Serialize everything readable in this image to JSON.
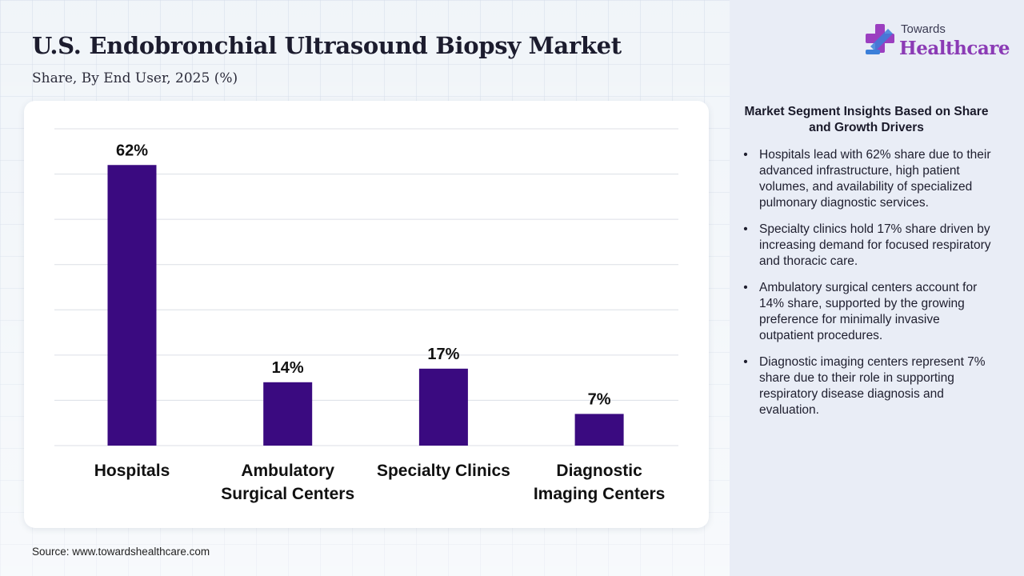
{
  "header": {
    "title": "U.S. Endobronchial Ultrasound Biopsy Market",
    "subtitle": "Share, By End User, 2025 (%)"
  },
  "logo": {
    "top_text": "Towards",
    "main_text": "Healthcare",
    "icon": "medical-cross-logo-icon"
  },
  "chart_data": {
    "type": "bar",
    "categories": [
      [
        "Hospitals"
      ],
      [
        "Ambulatory",
        "Surgical Centers"
      ],
      [
        "Specialty Clinics"
      ],
      [
        "Diagnostic",
        "Imaging Centers"
      ]
    ],
    "values": [
      62,
      14,
      17,
      7
    ],
    "data_labels": [
      "62%",
      "14%",
      "17%",
      "7%"
    ],
    "unit": "%",
    "ylim": [
      0,
      70
    ],
    "grid": true,
    "bar_color": "#3a0a80"
  },
  "insights": {
    "title": "Market Segment Insights Based on Share and Growth Drivers",
    "bullet": "•",
    "items": [
      "Hospitals lead with 62% share due to their advanced infrastructure, high patient volumes, and availability of specialized pulmonary diagnostic services.",
      "Specialty clinics hold 17% share driven by increasing demand for focused respiratory and thoracic care.",
      "Ambulatory surgical centers account for 14% share, supported by the growing preference for minimally invasive outpatient procedures.",
      "Diagnostic imaging centers represent 7% share due to their role in supporting respiratory disease diagnosis and evaluation."
    ]
  },
  "footer": {
    "source": "Source: www.towardshealthcare.com"
  },
  "colors": {
    "accent": "#8b3bb5",
    "logo_blue": "#3b7fd9",
    "logo_purple": "#9b3fc0"
  }
}
